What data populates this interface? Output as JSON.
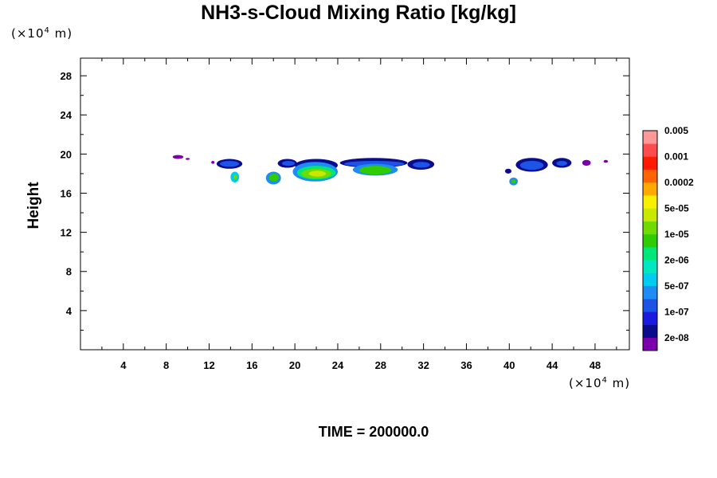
{
  "header": {
    "title": "NH3-s-Cloud Mixing Ratio [kg/kg]"
  },
  "footer": {
    "time_label": "TIME = 200000.0"
  },
  "chart_data": {
    "type": "heatmap",
    "title": "NH3-s-Cloud Mixing Ratio [kg/kg]",
    "ylabel": "Height",
    "xlabel": "",
    "x_unit_prefix": "(×10",
    "x_unit_exp": "4",
    "x_unit_suffix": " m)",
    "y_unit_prefix": "(×10",
    "y_unit_exp": "4",
    "y_unit_suffix": " m)",
    "xlim": [
      0,
      51.2
    ],
    "ylim": [
      0,
      29.8
    ],
    "x_ticks": [
      4,
      8,
      12,
      16,
      20,
      24,
      28,
      32,
      36,
      40,
      44,
      48
    ],
    "y_ticks": [
      4,
      8,
      12,
      16,
      20,
      24,
      28
    ],
    "x_minor_step": 2,
    "y_minor_step": 2,
    "colorbar": {
      "colors": [
        "#7b00ab",
        "#0b0b8e",
        "#1b1bdf",
        "#1c55e6",
        "#1e8cf2",
        "#00ccf0",
        "#00e8c2",
        "#00e67a",
        "#2ecc00",
        "#6fdb00",
        "#c8e800",
        "#f7f000",
        "#ffaa00",
        "#ff6400",
        "#ff1a00",
        "#ff4d4d",
        "#ff9999"
      ],
      "labels": [
        "2e-08",
        "1e-07",
        "5e-07",
        "2e-06",
        "1e-05",
        "5e-05",
        "0.0002",
        "0.001",
        "0.005"
      ]
    },
    "regions": [
      {
        "x": [
          8.6,
          9.6
        ],
        "y": [
          19.5,
          19.9
        ],
        "level": 0
      },
      {
        "x": [
          9.8,
          10.2
        ],
        "y": [
          19.4,
          19.6
        ],
        "level": 0
      },
      {
        "x": [
          12.2,
          12.5
        ],
        "y": [
          19.0,
          19.3
        ],
        "level": 0
      },
      {
        "x": [
          12.7,
          15.1
        ],
        "y": [
          18.5,
          19.5
        ],
        "level": 1
      },
      {
        "x": [
          13.0,
          14.8
        ],
        "y": [
          18.7,
          19.3
        ],
        "level": 3
      },
      {
        "x": [
          14.0,
          14.8
        ],
        "y": [
          17.1,
          18.2
        ],
        "level": 5
      },
      {
        "x": [
          14.3,
          14.6
        ],
        "y": [
          17.4,
          17.9
        ],
        "level": 9
      },
      {
        "x": [
          18.4,
          20.2
        ],
        "y": [
          18.6,
          19.5
        ],
        "level": 1
      },
      {
        "x": [
          18.8,
          20.0
        ],
        "y": [
          18.8,
          19.3
        ],
        "level": 3
      },
      {
        "x": [
          17.3,
          18.7
        ],
        "y": [
          16.9,
          18.2
        ],
        "level": 4
      },
      {
        "x": [
          17.6,
          18.5
        ],
        "y": [
          17.2,
          18.0
        ],
        "level": 8
      },
      {
        "x": [
          20.0,
          24.0
        ],
        "y": [
          18.2,
          19.5
        ],
        "level": 1
      },
      {
        "x": [
          19.8,
          24.0
        ],
        "y": [
          17.2,
          19.2
        ],
        "level": 4
      },
      {
        "x": [
          20.2,
          23.8
        ],
        "y": [
          17.4,
          18.8
        ],
        "level": 7
      },
      {
        "x": [
          20.6,
          23.4
        ],
        "y": [
          17.5,
          18.5
        ],
        "level": 9
      },
      {
        "x": [
          21.3,
          22.9
        ],
        "y": [
          17.7,
          18.3
        ],
        "level": 10
      },
      {
        "x": [
          24.2,
          30.5
        ],
        "y": [
          18.6,
          19.6
        ],
        "level": 1
      },
      {
        "x": [
          24.6,
          30.2
        ],
        "y": [
          18.7,
          19.3
        ],
        "level": 3
      },
      {
        "x": [
          25.4,
          29.6
        ],
        "y": [
          17.8,
          19.0
        ],
        "level": 4
      },
      {
        "x": [
          26.0,
          29.0
        ],
        "y": [
          17.9,
          18.8
        ],
        "level": 8
      },
      {
        "x": [
          30.5,
          33.0
        ],
        "y": [
          18.4,
          19.5
        ],
        "level": 1
      },
      {
        "x": [
          31.0,
          32.6
        ],
        "y": [
          18.6,
          19.2
        ],
        "level": 3
      },
      {
        "x": [
          39.6,
          40.2
        ],
        "y": [
          18.0,
          18.5
        ],
        "level": 1
      },
      {
        "x": [
          40.0,
          40.8
        ],
        "y": [
          16.8,
          17.6
        ],
        "level": 4
      },
      {
        "x": [
          40.2,
          40.6
        ],
        "y": [
          17.0,
          17.4
        ],
        "level": 8
      },
      {
        "x": [
          40.6,
          43.6
        ],
        "y": [
          18.2,
          19.6
        ],
        "level": 1
      },
      {
        "x": [
          41.0,
          43.2
        ],
        "y": [
          18.4,
          19.3
        ],
        "level": 3
      },
      {
        "x": [
          44.0,
          45.8
        ],
        "y": [
          18.6,
          19.6
        ],
        "level": 1
      },
      {
        "x": [
          44.4,
          45.4
        ],
        "y": [
          18.8,
          19.3
        ],
        "level": 3
      },
      {
        "x": [
          46.8,
          47.6
        ],
        "y": [
          18.8,
          19.4
        ],
        "level": 0
      },
      {
        "x": [
          48.8,
          49.2
        ],
        "y": [
          19.1,
          19.4
        ],
        "level": 0
      }
    ]
  }
}
